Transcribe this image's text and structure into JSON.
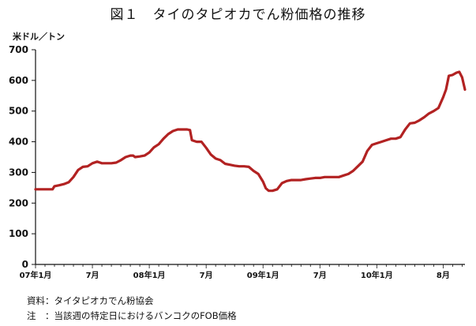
{
  "title": "図１　タイのタピオカでん粉価格の推移",
  "notes": [
    "資料：タイタピオカでん粉協会",
    "注　：当該週の特定日におけるバンコクのFOB価格"
  ],
  "chart_data": {
    "type": "line",
    "ylabel": "米ドル／トン",
    "ylim": [
      0,
      700
    ],
    "yticks": [
      0,
      100,
      200,
      300,
      400,
      500,
      600,
      700
    ],
    "xlim": [
      0,
      44
    ],
    "xtick_labels": [
      {
        "x": 0,
        "label": "07年1月"
      },
      {
        "x": 6,
        "label": "7月"
      },
      {
        "x": 12,
        "label": "08年1月"
      },
      {
        "x": 18,
        "label": "7月"
      },
      {
        "x": 24,
        "label": "09年1月"
      },
      {
        "x": 30,
        "label": "7月"
      },
      {
        "x": 36,
        "label": "10年1月"
      },
      {
        "x": 43,
        "label": "8月"
      }
    ],
    "grid": false,
    "legend": "none",
    "color": "#b22222",
    "series": [
      {
        "points": [
          [
            0,
            245
          ],
          [
            1,
            245
          ],
          [
            1.8,
            245
          ],
          [
            2,
            255
          ],
          [
            2.5,
            258
          ],
          [
            3,
            262
          ],
          [
            3.5,
            268
          ],
          [
            4,
            285
          ],
          [
            4.5,
            308
          ],
          [
            5,
            318
          ],
          [
            5.5,
            320
          ],
          [
            6,
            330
          ],
          [
            6.5,
            335
          ],
          [
            7,
            330
          ],
          [
            7.5,
            330
          ],
          [
            8,
            330
          ],
          [
            8.5,
            332
          ],
          [
            9,
            340
          ],
          [
            9.5,
            350
          ],
          [
            10,
            355
          ],
          [
            10.3,
            355
          ],
          [
            10.5,
            350
          ],
          [
            11,
            352
          ],
          [
            11.5,
            355
          ],
          [
            12,
            365
          ],
          [
            12.5,
            382
          ],
          [
            13,
            392
          ],
          [
            13.5,
            410
          ],
          [
            14,
            425
          ],
          [
            14.5,
            435
          ],
          [
            15,
            440
          ],
          [
            15.5,
            440
          ],
          [
            16,
            440
          ],
          [
            16.3,
            438
          ],
          [
            16.5,
            405
          ],
          [
            17,
            400
          ],
          [
            17.5,
            400
          ],
          [
            18,
            380
          ],
          [
            18.5,
            358
          ],
          [
            19,
            345
          ],
          [
            19.5,
            340
          ],
          [
            20,
            328
          ],
          [
            20.5,
            325
          ],
          [
            21,
            322
          ],
          [
            21.5,
            320
          ],
          [
            22,
            320
          ],
          [
            22.5,
            318
          ],
          [
            23,
            305
          ],
          [
            23.5,
            295
          ],
          [
            24,
            270
          ],
          [
            24.3,
            248
          ],
          [
            24.6,
            240
          ],
          [
            25,
            240
          ],
          [
            25.5,
            245
          ],
          [
            26,
            265
          ],
          [
            26.5,
            272
          ],
          [
            27,
            275
          ],
          [
            27.5,
            275
          ],
          [
            28,
            275
          ],
          [
            28.5,
            278
          ],
          [
            29,
            280
          ],
          [
            29.5,
            282
          ],
          [
            30,
            282
          ],
          [
            30.5,
            285
          ],
          [
            31,
            285
          ],
          [
            31.5,
            285
          ],
          [
            32,
            285
          ],
          [
            32.5,
            290
          ],
          [
            33,
            295
          ],
          [
            33.5,
            305
          ],
          [
            34,
            320
          ],
          [
            34.5,
            335
          ],
          [
            35,
            370
          ],
          [
            35.5,
            390
          ],
          [
            36,
            395
          ],
          [
            36.5,
            400
          ],
          [
            37,
            405
          ],
          [
            37.5,
            410
          ],
          [
            38,
            410
          ],
          [
            38.5,
            415
          ],
          [
            39,
            440
          ],
          [
            39.5,
            460
          ],
          [
            40,
            462
          ],
          [
            40.5,
            470
          ],
          [
            41,
            480
          ],
          [
            41.5,
            492
          ],
          [
            42,
            500
          ],
          [
            42.5,
            510
          ],
          [
            43,
            545
          ],
          [
            43.3,
            570
          ],
          [
            43.6,
            615
          ],
          [
            44,
            618
          ],
          [
            44.4,
            625
          ],
          [
            44.7,
            628
          ],
          [
            45,
            610
          ],
          [
            45.3,
            570
          ]
        ]
      }
    ]
  }
}
